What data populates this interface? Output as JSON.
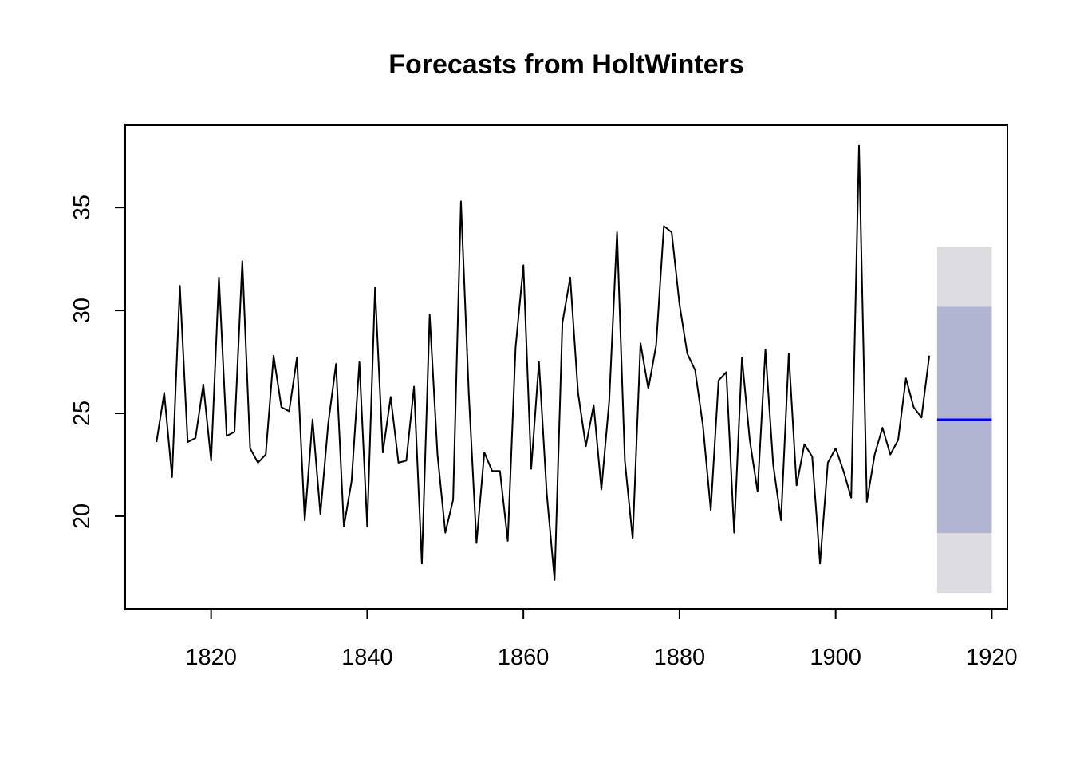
{
  "chart_data": {
    "type": "line",
    "title": "Forecasts from HoltWinters",
    "xlabel": "",
    "ylabel": "",
    "xlim": [
      1809,
      1922
    ],
    "ylim": [
      15.5,
      39.0
    ],
    "x_ticks": [
      1820,
      1840,
      1860,
      1880,
      1900,
      1920
    ],
    "y_ticks": [
      20,
      25,
      30,
      35
    ],
    "colors": {
      "observed": "#000000",
      "forecast": "#0000ff",
      "band_80": "#b1b5d1",
      "band_95": "#dbdbe0"
    },
    "observed": {
      "start_year": 1813,
      "values": [
        23.6,
        26.0,
        21.9,
        31.2,
        23.6,
        23.8,
        26.4,
        22.7,
        31.6,
        23.9,
        24.1,
        32.4,
        23.3,
        22.6,
        23.0,
        27.8,
        25.3,
        25.1,
        27.7,
        19.8,
        24.7,
        20.1,
        24.5,
        27.4,
        19.5,
        21.7,
        27.5,
        19.5,
        31.1,
        23.1,
        25.8,
        22.6,
        22.7,
        26.3,
        17.7,
        29.8,
        23.0,
        19.2,
        20.8,
        35.3,
        26.0,
        18.7,
        23.1,
        22.2,
        22.2,
        18.8,
        28.2,
        32.2,
        22.3,
        27.5,
        21.1,
        16.9,
        29.4,
        31.6,
        26.0,
        23.4,
        25.4,
        21.3,
        25.6,
        33.8,
        22.7,
        18.9,
        28.4,
        26.2,
        28.3,
        34.1,
        33.8,
        30.3,
        27.9,
        27.1,
        24.4,
        20.3,
        26.6,
        27.0,
        19.2,
        27.7,
        23.7,
        21.2,
        28.1,
        22.5,
        19.8,
        27.9,
        21.5,
        23.5,
        22.9,
        17.7,
        22.6,
        23.3,
        22.2,
        20.9,
        38.0,
        20.7,
        23.0,
        24.3,
        23.0,
        23.7,
        26.7,
        25.3,
        24.8,
        27.8
      ]
    },
    "forecast": {
      "start": 1913,
      "end": 1920,
      "mean": 24.68,
      "lo80": 19.18,
      "hi80": 30.18,
      "lo95": 16.27,
      "hi95": 33.09
    }
  }
}
